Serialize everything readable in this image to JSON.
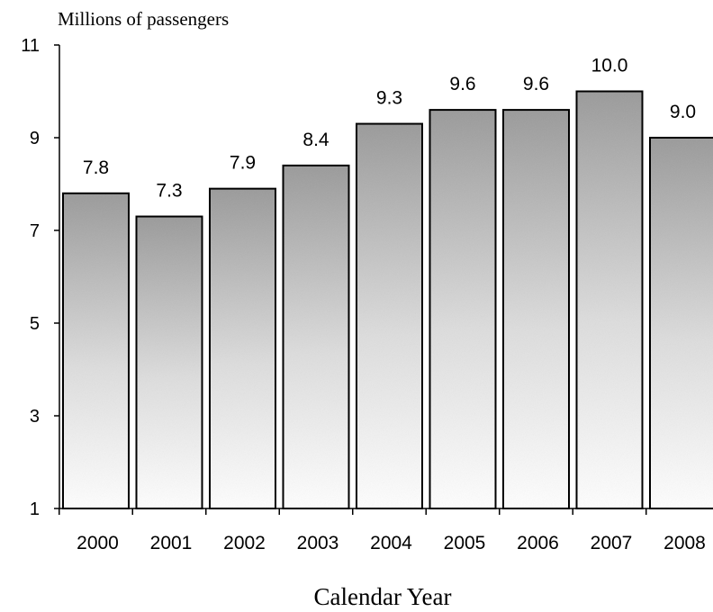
{
  "chart_data": {
    "type": "bar",
    "ylabel": "Millions of passengers",
    "xlabel": "Calendar Year",
    "categories": [
      "2000",
      "2001",
      "2002",
      "2003",
      "2004",
      "2005",
      "2006",
      "2007",
      "2008"
    ],
    "values": [
      7.8,
      7.3,
      7.9,
      8.4,
      9.3,
      9.6,
      9.6,
      10.0,
      9.0
    ],
    "value_labels": [
      "7.8",
      "7.3",
      "7.9",
      "8.4",
      "9.3",
      "9.6",
      "9.6",
      "10.0",
      "9.0"
    ],
    "ylim": [
      1,
      11
    ],
    "yticks": [
      1,
      3,
      5,
      7,
      9,
      11
    ],
    "ytick_labels": [
      "1",
      "3",
      "5",
      "7",
      "9",
      "11"
    ],
    "grid": false,
    "legend": "none",
    "colors": {
      "bar_top": "#9a9a9a",
      "bar_bottom": "#ffffff",
      "bar_outline": "#000000",
      "axis": "#000000"
    }
  }
}
